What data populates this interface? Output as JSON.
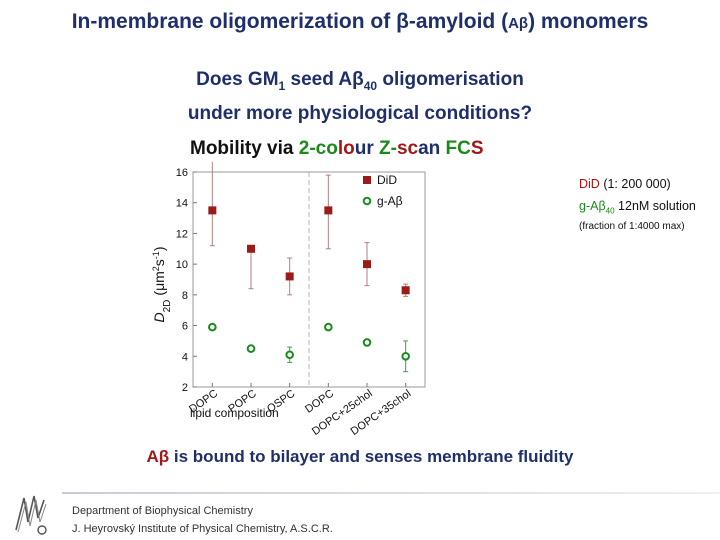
{
  "slide": {
    "title_prefix": "In-membrane oligomerization of β-amyloid (",
    "title_abbr": "Aβ",
    "title_suffix": ") monomers",
    "question_line1_a": "Does GM",
    "question_line1_sub1": "1",
    "question_line1_b": " seed Aβ",
    "question_line1_sub2": "40",
    "question_line1_c": " oligomerisation",
    "question_line2": "under more physiological conditions?",
    "mobility_prefix": "Mobility via ",
    "mobility_word1_a": "2-co",
    "mobility_word1_b": "lo",
    "mobility_word1_c": "ur",
    "mobility_word2_a": "Z-",
    "mobility_word2_b": "sc",
    "mobility_word2_c": "an",
    "mobility_word3_a": "FC",
    "mobility_word3_b": "S",
    "side_did_name": "DiD",
    "side_did_ratio": " (1: 200 000)",
    "side_gab_name": "g-Aβ",
    "side_gab_sub": "40",
    "side_gab_conc": " 12nM solution",
    "side_fraction": "(fraction of 1:4000 max)",
    "conclusion_a": "A",
    "conclusion_b": "β",
    "conclusion_c": " is bound to bilayer and senses membrane fluidity",
    "footer_line1": "Department of Biophysical Chemistry",
    "footer_line2": "J. Heyrovský Institute of Physical Chemistry, A.S.C.R.",
    "colors": {
      "did": "#9b1b1b",
      "gab": "#1a8a1a",
      "title": "#1f2f6b"
    },
    "logo_icon": "institute-logo-icon"
  },
  "chart_data": {
    "type": "scatter",
    "ylabel": "D",
    "ylabel_sub": "2D",
    "ylabel_units": "(μm",
    "ylabel_units_sup": "2",
    "ylabel_units_mid": "s",
    "ylabel_units_sup2": "-1",
    "ylabel_units_end": ")",
    "xlabel": "lipid composition",
    "categories": [
      "DOPC",
      "POPC",
      "OSPC",
      "DOPC",
      "DOPC+25chol",
      "DOPC+35chol"
    ],
    "ylim": [
      2,
      16
    ],
    "yticks": [
      2,
      4,
      6,
      8,
      10,
      12,
      14,
      16
    ],
    "group_divider_after_index": 2,
    "legend_position": "top-right",
    "series": [
      {
        "name": "DiD",
        "marker": "square",
        "color": "#9b1b1b",
        "values": [
          13.5,
          11.0,
          9.2,
          13.5,
          10.0,
          8.3
        ],
        "err_low": [
          2.3,
          2.6,
          1.2,
          2.5,
          1.4,
          0.4
        ],
        "err_high": [
          3.3,
          0.0,
          1.2,
          2.3,
          1.4,
          0.4
        ]
      },
      {
        "name": "g-Aβ",
        "marker": "circle-open",
        "color": "#1a8a1a",
        "values": [
          5.9,
          4.5,
          4.1,
          5.9,
          4.9,
          4.0
        ],
        "err_low": [
          0.15,
          0.15,
          0.5,
          0.2,
          0.1,
          1.0
        ],
        "err_high": [
          0.15,
          0.15,
          0.5,
          0.2,
          0.1,
          1.0
        ]
      }
    ]
  }
}
